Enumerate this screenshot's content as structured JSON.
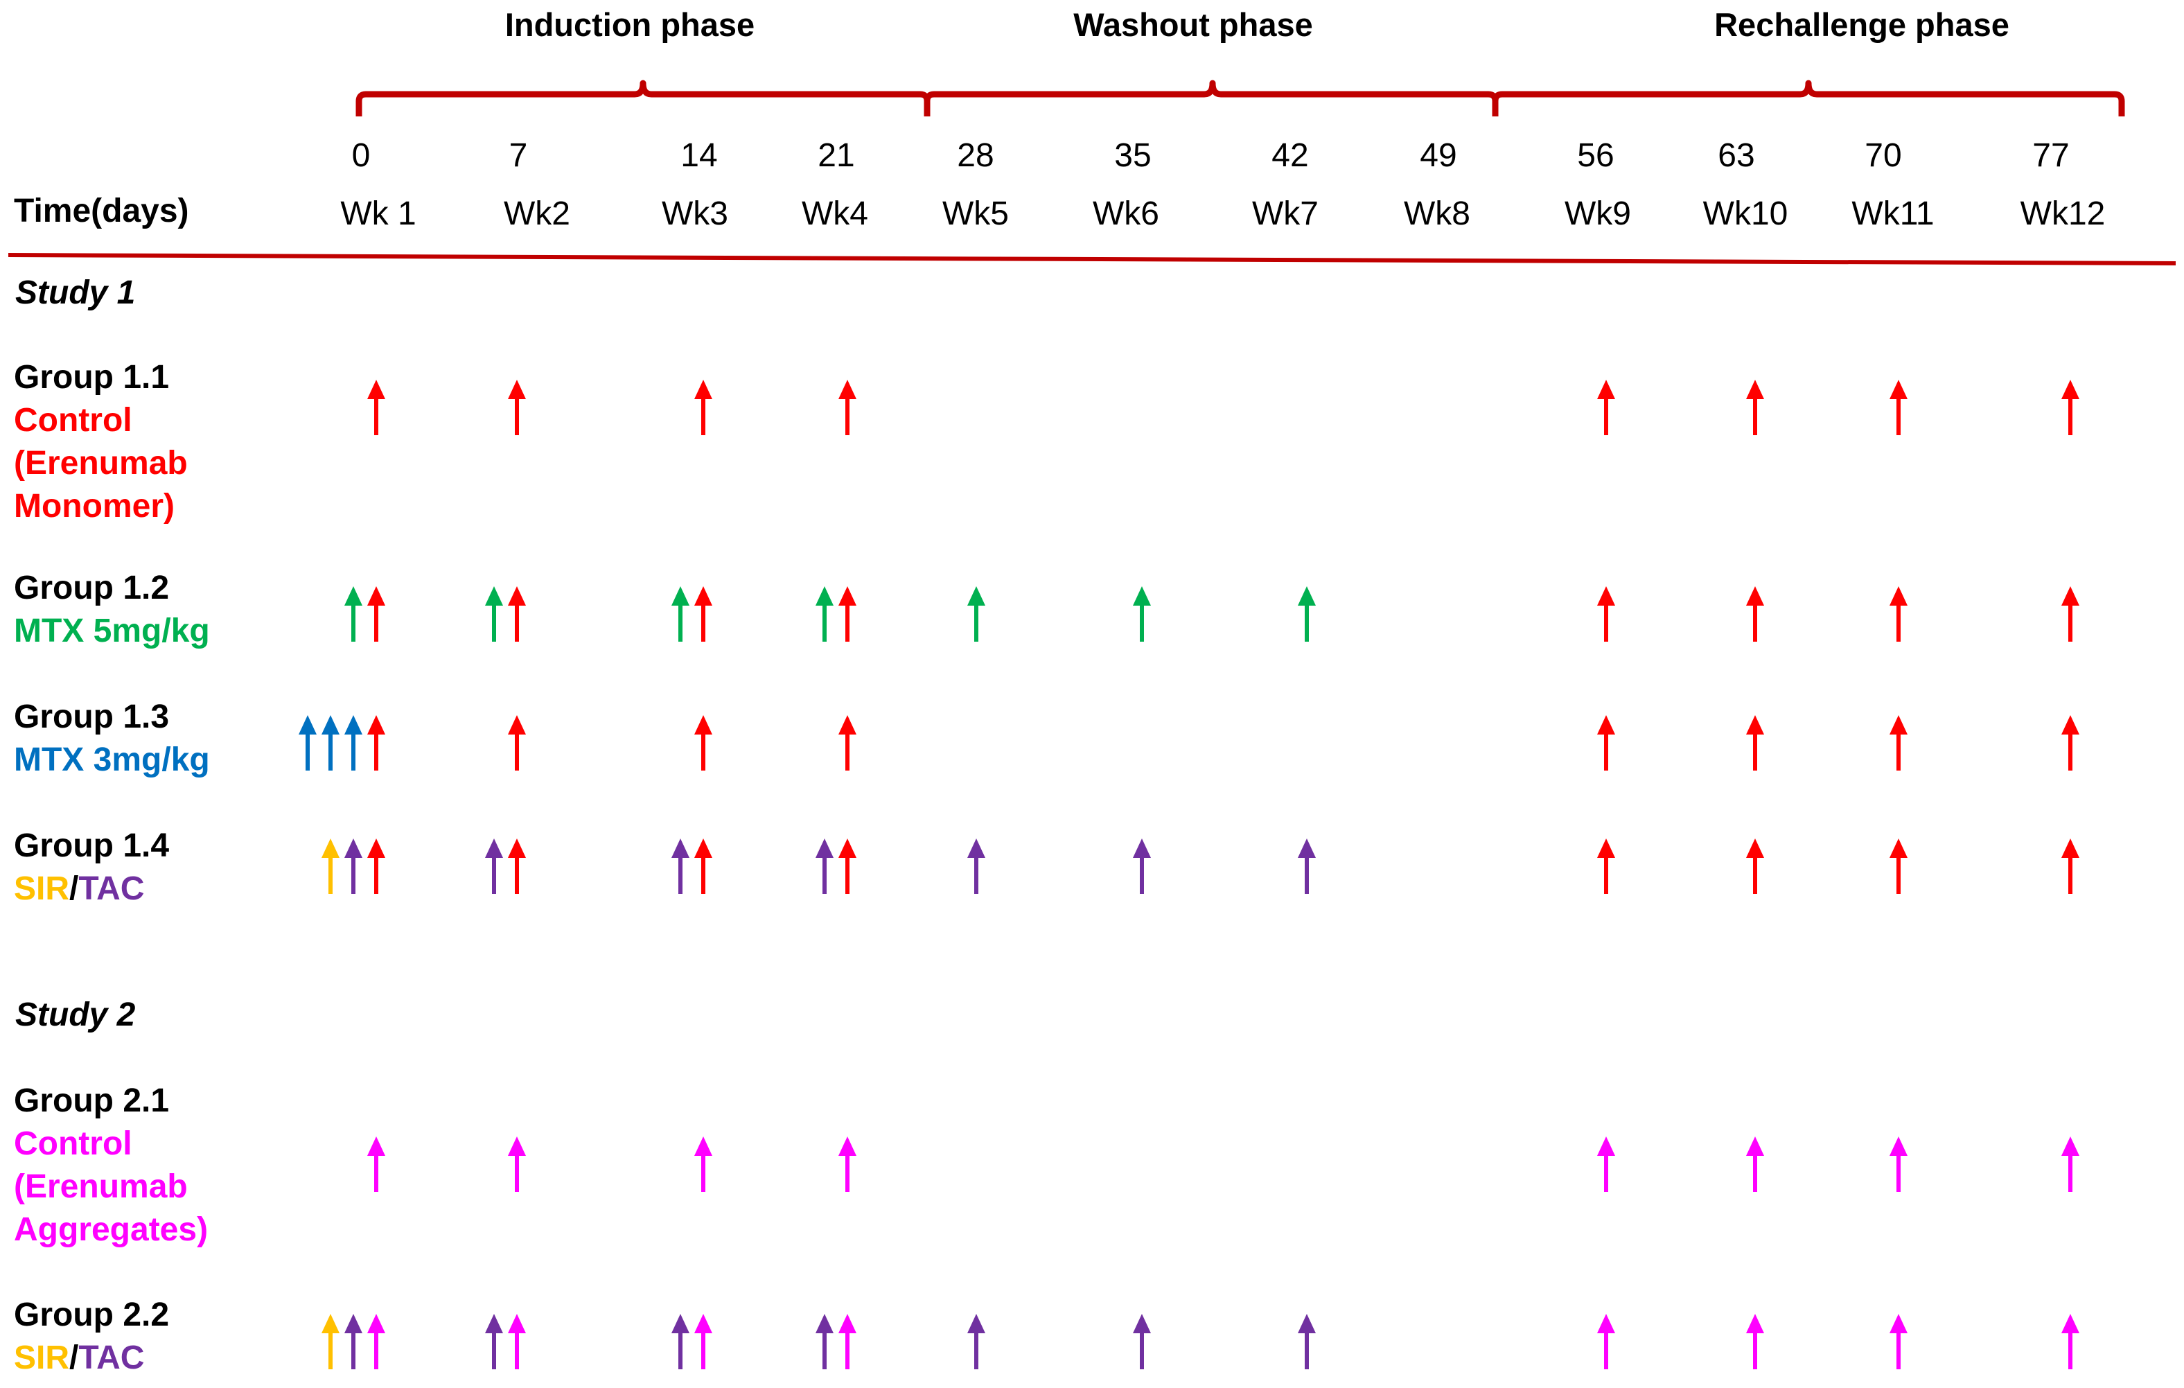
{
  "colors": {
    "bracket": "#C00000",
    "divider": "#C00000",
    "red": "#FF0000",
    "green": "#00B050",
    "blue": "#0070C0",
    "yellow": "#FFC000",
    "purple": "#7030A0",
    "magenta": "#FF00FF"
  },
  "header": {
    "phases": [
      "Induction phase",
      "Washout phase",
      "Rechallenge phase"
    ],
    "time_label": "Time(days)",
    "days": [
      "0",
      "7",
      "14",
      "21",
      "28",
      "35",
      "42",
      "49",
      "56",
      "63",
      "70",
      "77"
    ],
    "weeks": [
      "Wk 1",
      "Wk2",
      "Wk3",
      "Wk4",
      "Wk5",
      "Wk6",
      "Wk7",
      "Wk8",
      "Wk9",
      "Wk10",
      "Wk11",
      "Wk12"
    ]
  },
  "studies": [
    {
      "label": "Study 1",
      "groups": [
        {
          "title": "Group 1.1",
          "subtitle_parts": [
            {
              "text": "Control",
              "color": "red",
              "line": 1
            },
            {
              "text": "(Erenumab",
              "color": "red",
              "line": 2
            },
            {
              "text": "Monomer)",
              "color": "red",
              "line": 3
            }
          ],
          "doses": [
            {
              "week": 1,
              "arrows": [
                "red"
              ]
            },
            {
              "week": 2,
              "arrows": [
                "red"
              ]
            },
            {
              "week": 3,
              "arrows": [
                "red"
              ]
            },
            {
              "week": 4,
              "arrows": [
                "red"
              ]
            },
            {
              "week": 9,
              "arrows": [
                "red"
              ]
            },
            {
              "week": 10,
              "arrows": [
                "red"
              ]
            },
            {
              "week": 11,
              "arrows": [
                "red"
              ]
            },
            {
              "week": 12,
              "arrows": [
                "red"
              ]
            }
          ]
        },
        {
          "title": "Group 1.2",
          "subtitle_parts": [
            {
              "text": "MTX 5mg/kg",
              "color": "green",
              "line": 1
            }
          ],
          "doses": [
            {
              "week": 1,
              "arrows": [
                "green",
                "red"
              ]
            },
            {
              "week": 2,
              "arrows": [
                "green",
                "red"
              ]
            },
            {
              "week": 3,
              "arrows": [
                "green",
                "red"
              ]
            },
            {
              "week": 4,
              "arrows": [
                "green",
                "red"
              ]
            },
            {
              "week": 5,
              "arrows": [
                "green"
              ]
            },
            {
              "week": 6,
              "arrows": [
                "green"
              ]
            },
            {
              "week": 7,
              "arrows": [
                "green"
              ]
            },
            {
              "week": 9,
              "arrows": [
                "red"
              ]
            },
            {
              "week": 10,
              "arrows": [
                "red"
              ]
            },
            {
              "week": 11,
              "arrows": [
                "red"
              ]
            },
            {
              "week": 12,
              "arrows": [
                "red"
              ]
            }
          ]
        },
        {
          "title": "Group 1.3",
          "subtitle_parts": [
            {
              "text": "MTX 3mg/kg",
              "color": "blue",
              "line": 1
            }
          ],
          "doses": [
            {
              "week": 1,
              "arrows": [
                "blue",
                "blue",
                "blue",
                "red"
              ]
            },
            {
              "week": 2,
              "arrows": [
                "red"
              ]
            },
            {
              "week": 3,
              "arrows": [
                "red"
              ]
            },
            {
              "week": 4,
              "arrows": [
                "red"
              ]
            },
            {
              "week": 9,
              "arrows": [
                "red"
              ]
            },
            {
              "week": 10,
              "arrows": [
                "red"
              ]
            },
            {
              "week": 11,
              "arrows": [
                "red"
              ]
            },
            {
              "week": 12,
              "arrows": [
                "red"
              ]
            }
          ]
        },
        {
          "title": "Group 1.4",
          "subtitle_parts": [
            {
              "text": "SIR",
              "color": "yellow",
              "line": 1
            },
            {
              "text": "/",
              "color": "black",
              "line": 1
            },
            {
              "text": "TAC",
              "color": "purple",
              "line": 1
            }
          ],
          "doses": [
            {
              "week": 1,
              "arrows": [
                "yellow",
                "purple",
                "red"
              ]
            },
            {
              "week": 2,
              "arrows": [
                "purple",
                "red"
              ]
            },
            {
              "week": 3,
              "arrows": [
                "purple",
                "red"
              ]
            },
            {
              "week": 4,
              "arrows": [
                "purple",
                "red"
              ]
            },
            {
              "week": 5,
              "arrows": [
                "purple"
              ]
            },
            {
              "week": 6,
              "arrows": [
                "purple"
              ]
            },
            {
              "week": 7,
              "arrows": [
                "purple"
              ]
            },
            {
              "week": 9,
              "arrows": [
                "red"
              ]
            },
            {
              "week": 10,
              "arrows": [
                "red"
              ]
            },
            {
              "week": 11,
              "arrows": [
                "red"
              ]
            },
            {
              "week": 12,
              "arrows": [
                "red"
              ]
            }
          ]
        }
      ]
    },
    {
      "label": "Study 2",
      "groups": [
        {
          "title": "Group 2.1",
          "subtitle_parts": [
            {
              "text": "Control",
              "color": "magenta",
              "line": 1
            },
            {
              "text": "(Erenumab",
              "color": "magenta",
              "line": 2
            },
            {
              "text": "Aggregates)",
              "color": "magenta",
              "line": 3
            }
          ],
          "doses": [
            {
              "week": 1,
              "arrows": [
                "magenta"
              ]
            },
            {
              "week": 2,
              "arrows": [
                "magenta"
              ]
            },
            {
              "week": 3,
              "arrows": [
                "magenta"
              ]
            },
            {
              "week": 4,
              "arrows": [
                "magenta"
              ]
            },
            {
              "week": 9,
              "arrows": [
                "magenta"
              ]
            },
            {
              "week": 10,
              "arrows": [
                "magenta"
              ]
            },
            {
              "week": 11,
              "arrows": [
                "magenta"
              ]
            },
            {
              "week": 12,
              "arrows": [
                "magenta"
              ]
            }
          ]
        },
        {
          "title": "Group 2.2",
          "subtitle_parts": [
            {
              "text": "SIR",
              "color": "yellow",
              "line": 1
            },
            {
              "text": "/",
              "color": "black",
              "line": 1
            },
            {
              "text": "TAC",
              "color": "purple",
              "line": 1
            }
          ],
          "doses": [
            {
              "week": 1,
              "arrows": [
                "yellow",
                "purple",
                "magenta"
              ]
            },
            {
              "week": 2,
              "arrows": [
                "purple",
                "magenta"
              ]
            },
            {
              "week": 3,
              "arrows": [
                "purple",
                "magenta"
              ]
            },
            {
              "week": 4,
              "arrows": [
                "purple",
                "magenta"
              ]
            },
            {
              "week": 5,
              "arrows": [
                "purple"
              ]
            },
            {
              "week": 6,
              "arrows": [
                "purple"
              ]
            },
            {
              "week": 7,
              "arrows": [
                "purple"
              ]
            },
            {
              "week": 9,
              "arrows": [
                "magenta"
              ]
            },
            {
              "week": 10,
              "arrows": [
                "magenta"
              ]
            },
            {
              "week": 11,
              "arrows": [
                "magenta"
              ]
            },
            {
              "week": 12,
              "arrows": [
                "magenta"
              ]
            }
          ]
        }
      ]
    }
  ]
}
